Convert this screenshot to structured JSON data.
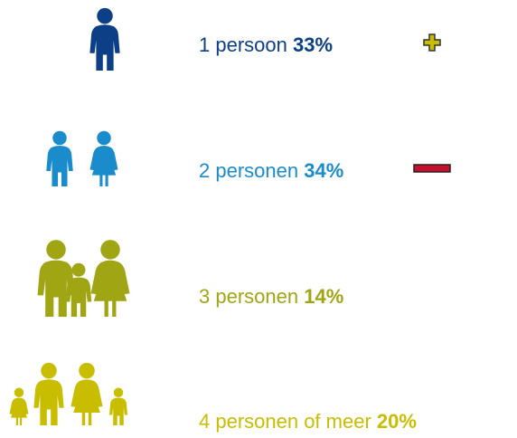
{
  "items": [
    {
      "label": "1 persoon",
      "value": "33%"
    },
    {
      "label": "2 personen",
      "value": "34%"
    },
    {
      "label": "3 personen",
      "value": "14%"
    },
    {
      "label": "4 personen of meer",
      "value": "20%"
    }
  ]
}
